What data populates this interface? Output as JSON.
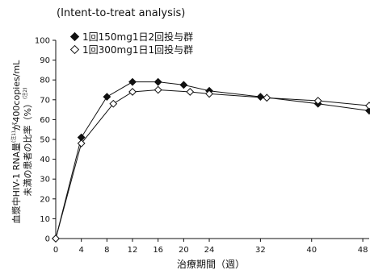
{
  "chart_data": {
    "type": "line",
    "subtitle": "(Intent-to-treat analysis)",
    "xlabel": "治療期間（週）",
    "ylabel_main": "血漿中HIV-1 RNA量",
    "ylabel_note1": "(注1)",
    "ylabel_tail": "が400copies/mL",
    "ylabel_line2": "未満の患者の比率（%）",
    "ylabel_note2": "(注2)",
    "xlim": [
      0,
      49
    ],
    "ylim": [
      0,
      100
    ],
    "x_ticks": [
      0,
      4,
      8,
      12,
      16,
      20,
      24,
      32,
      40,
      48
    ],
    "y_ticks": [
      0,
      10,
      20,
      30,
      40,
      50,
      60,
      70,
      80,
      90,
      100
    ],
    "grid": false,
    "legend_position": "top-left",
    "series": [
      {
        "name": "1回150mg1日2回投与群",
        "marker": "filled-diamond",
        "color": "#111111",
        "x": [
          0,
          4,
          8,
          12,
          16,
          20,
          24,
          32,
          41,
          49
        ],
        "y": [
          0,
          51,
          71.5,
          79,
          79,
          77.5,
          74.5,
          71.5,
          68,
          64.5
        ]
      },
      {
        "name": "1回300mg1日1回投与群",
        "marker": "open-diamond",
        "color": "#111111",
        "x": [
          0,
          4,
          9,
          12,
          16,
          21,
          24,
          33,
          41,
          49
        ],
        "y": [
          0,
          48,
          68,
          74,
          75,
          74,
          73,
          71,
          69.5,
          67
        ]
      }
    ]
  }
}
